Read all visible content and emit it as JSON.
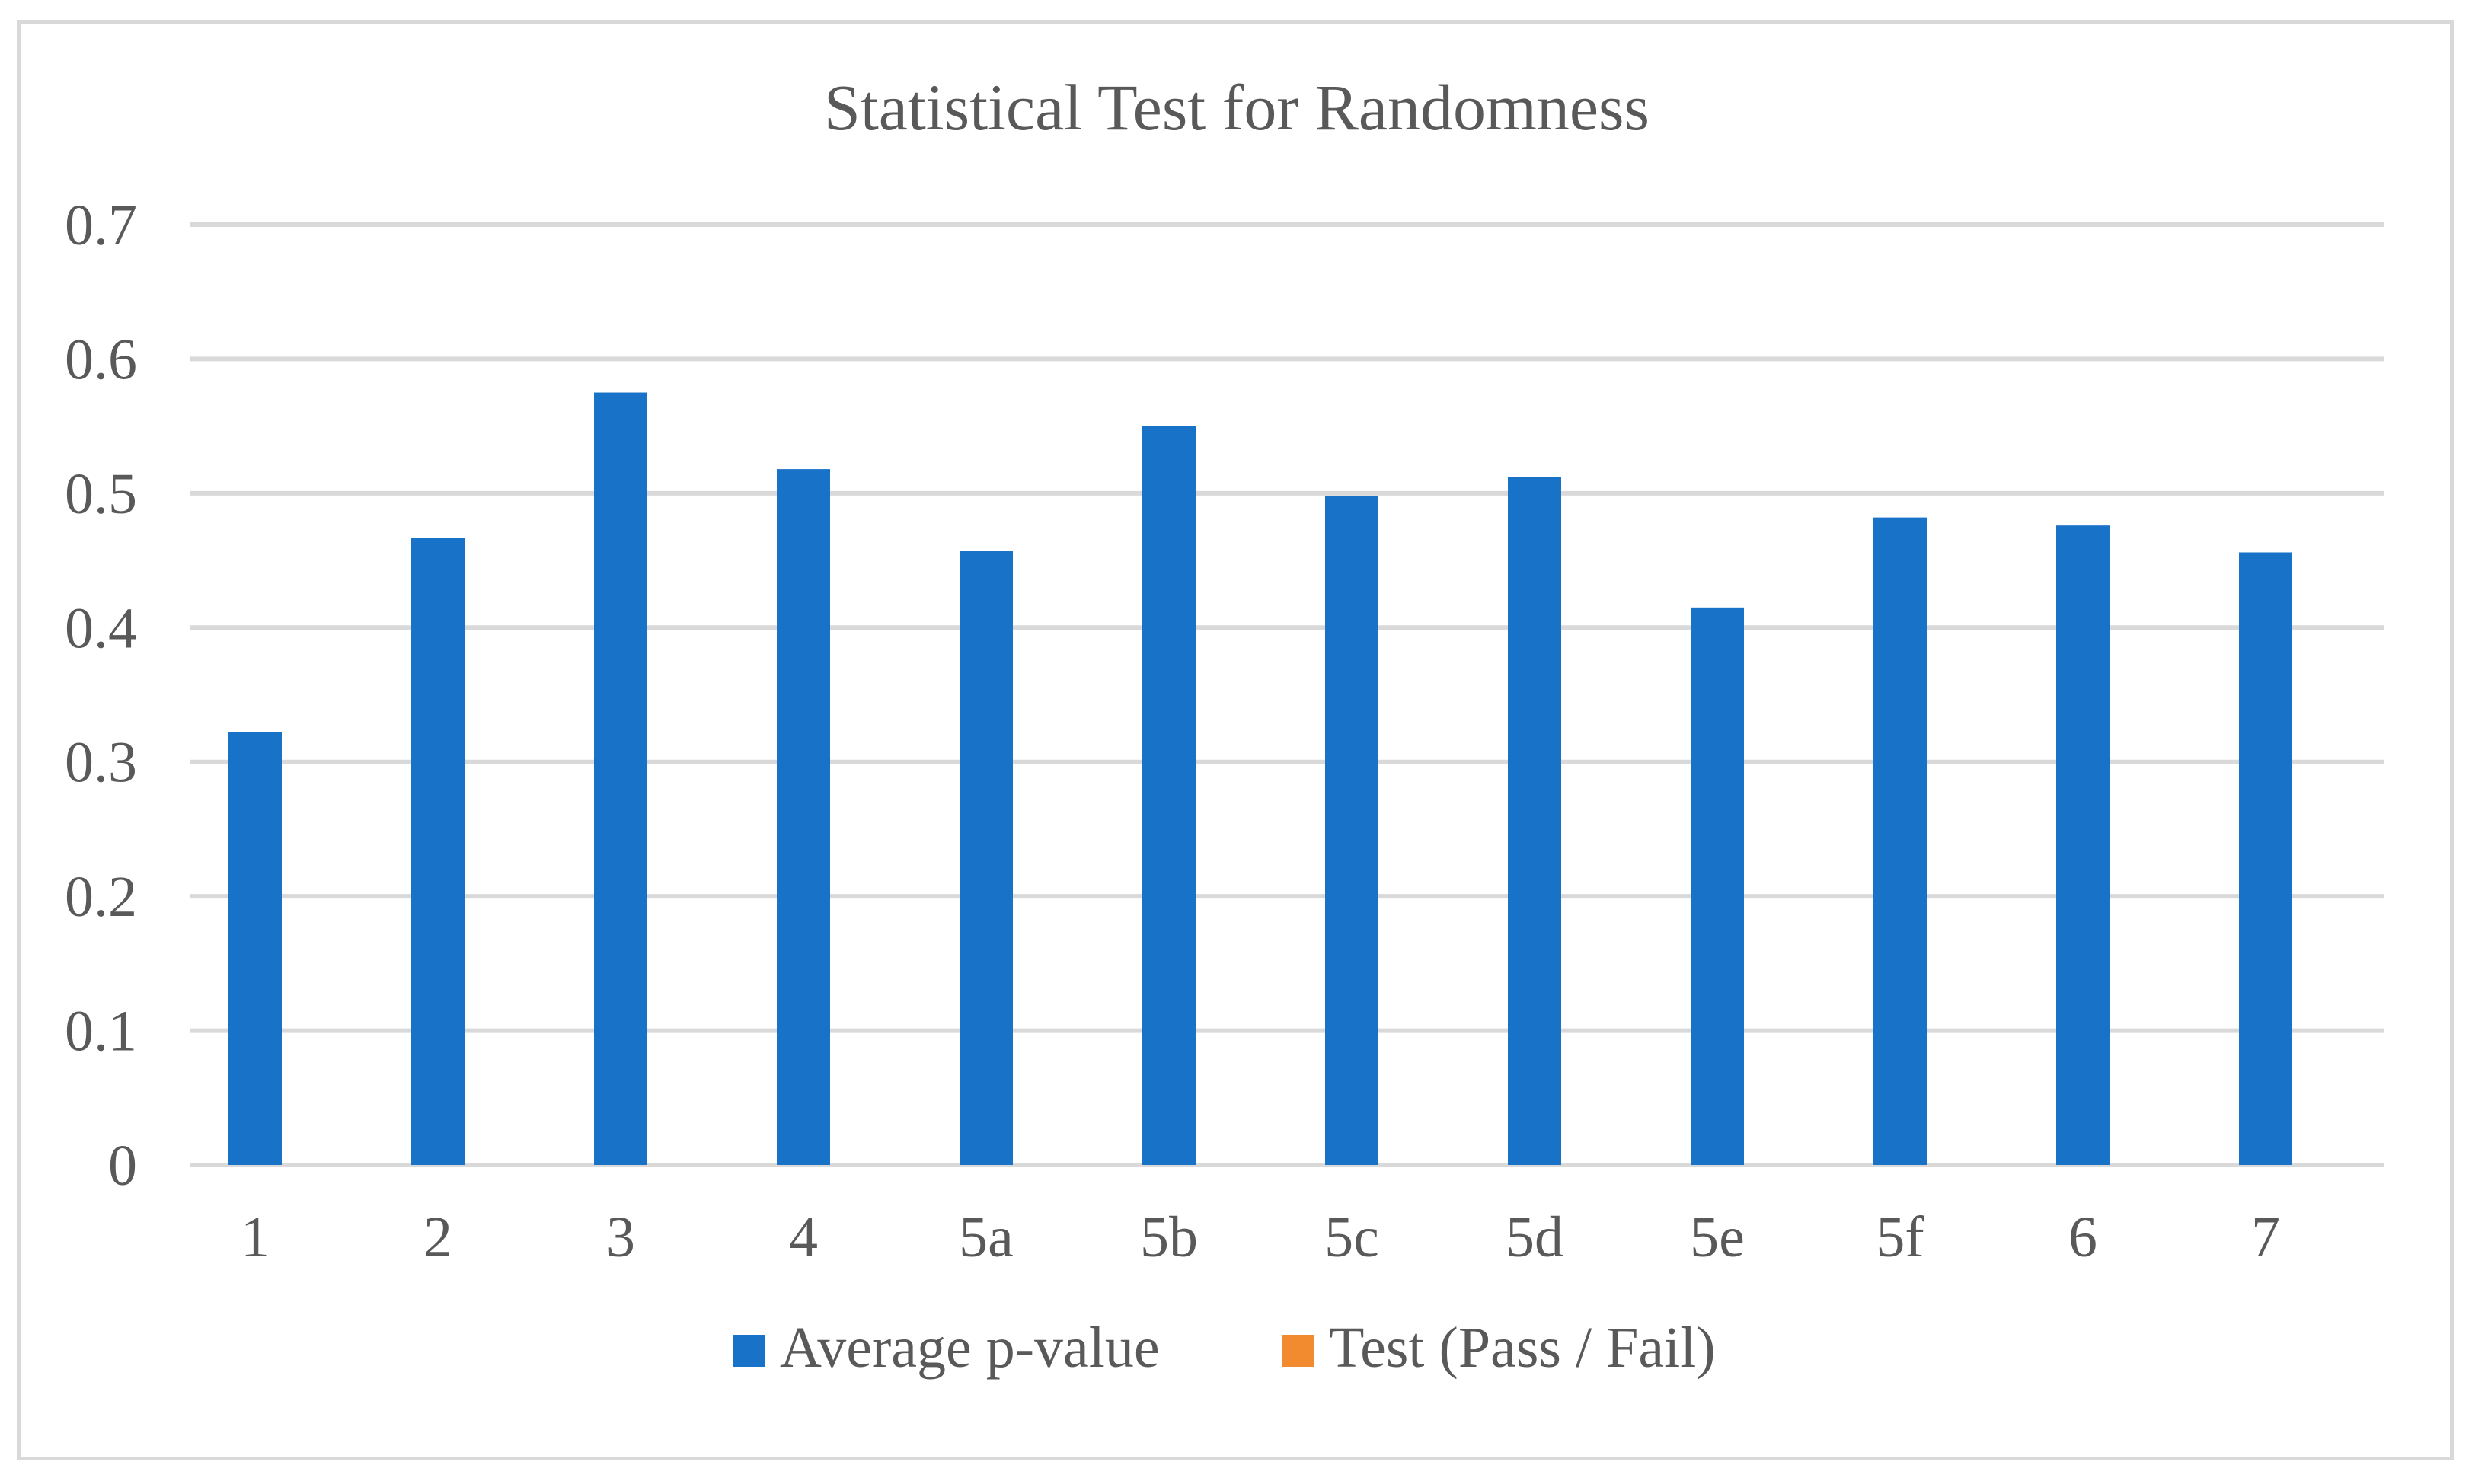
{
  "chart_data": {
    "type": "bar",
    "title": "Statistical Test for Randomness",
    "xlabel": "",
    "ylabel": "",
    "categories": [
      "1",
      "2",
      "3",
      "4",
      "5a",
      "5b",
      "5c",
      "5d",
      "5e",
      "5f",
      "6",
      "7"
    ],
    "series": [
      {
        "name": "Average p-value",
        "color": "#1872C8",
        "values": [
          0.322,
          0.467,
          0.575,
          0.518,
          0.457,
          0.55,
          0.498,
          0.512,
          0.415,
          0.482,
          0.476,
          0.456
        ]
      },
      {
        "name": "Test (Pass / Fail)",
        "color": "#F28A30",
        "values": [
          0,
          0,
          0,
          0,
          0,
          0,
          0,
          0,
          0,
          0,
          0,
          0
        ]
      }
    ],
    "ylim": [
      0,
      0.7
    ],
    "yticks": [
      "0",
      "0.1",
      "0.2",
      "0.3",
      "0.4",
      "0.5",
      "0.6",
      "0.7"
    ],
    "grid": true,
    "legend": "bottom"
  }
}
